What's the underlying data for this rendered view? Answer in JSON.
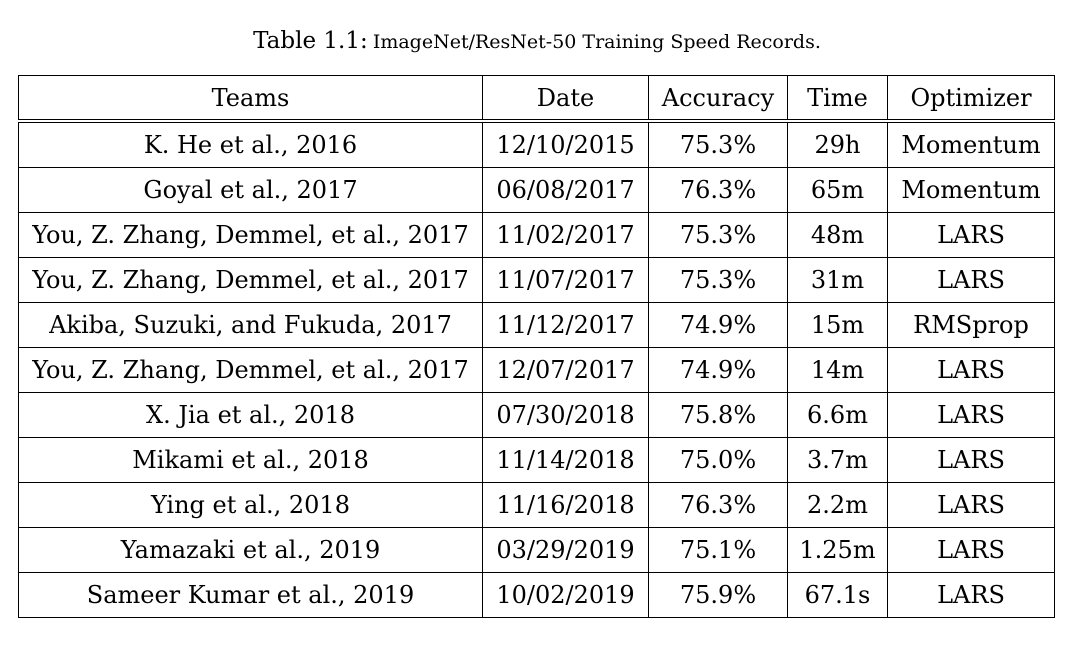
{
  "caption": {
    "label": "Table 1.1:",
    "text": "ImageNet/ResNet-50 Training Speed Records."
  },
  "table": {
    "headers": [
      "Teams",
      "Date",
      "Accuracy",
      "Time",
      "Optimizer"
    ],
    "rows": [
      [
        "K. He et al., 2016",
        "12/10/2015",
        "75.3%",
        "29h",
        "Momentum"
      ],
      [
        "Goyal et al., 2017",
        "06/08/2017",
        "76.3%",
        "65m",
        "Momentum"
      ],
      [
        "You, Z. Zhang, Demmel, et al., 2017",
        "11/02/2017",
        "75.3%",
        "48m",
        "LARS"
      ],
      [
        "You, Z. Zhang, Demmel, et al., 2017",
        "11/07/2017",
        "75.3%",
        "31m",
        "LARS"
      ],
      [
        "Akiba, Suzuki, and Fukuda, 2017",
        "11/12/2017",
        "74.9%",
        "15m",
        "RMSprop"
      ],
      [
        "You, Z. Zhang, Demmel, et al., 2017",
        "12/07/2017",
        "74.9%",
        "14m",
        "LARS"
      ],
      [
        "X. Jia et al., 2018",
        "07/30/2018",
        "75.8%",
        "6.6m",
        "LARS"
      ],
      [
        "Mikami et al., 2018",
        "11/14/2018",
        "75.0%",
        "3.7m",
        "LARS"
      ],
      [
        "Ying et al., 2018",
        "11/16/2018",
        "76.3%",
        "2.2m",
        "LARS"
      ],
      [
        "Yamazaki et al., 2019",
        "03/29/2019",
        "75.1%",
        "1.25m",
        "LARS"
      ],
      [
        "Sameer Kumar et al., 2019",
        "10/02/2019",
        "75.9%",
        "67.1s",
        "LARS"
      ]
    ]
  }
}
